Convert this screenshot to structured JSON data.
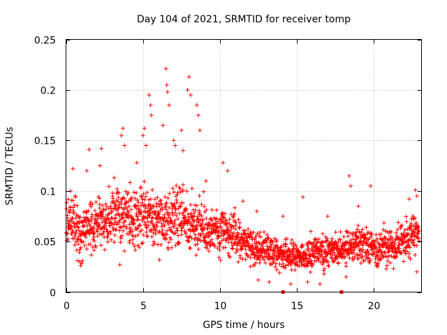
{
  "chart_data": {
    "type": "scatter",
    "title": "Day 104 of 2021, SRMTID for receiver tomp",
    "xlabel": "GPS time / hours",
    "ylabel": "SRMTID / TECUs",
    "xlim": [
      0,
      23.1
    ],
    "ylim": [
      0,
      0.25
    ],
    "x_ticks": [
      0,
      5,
      10,
      15,
      20
    ],
    "x_tick_labels": [
      "0",
      "5",
      "10",
      "15",
      "20"
    ],
    "y_ticks": [
      0,
      0.05,
      0.1,
      0.15,
      0.2,
      0.25
    ],
    "y_tick_labels": [
      "0",
      "0.05",
      "0.1",
      "0.15",
      "0.2",
      "0.25"
    ],
    "grid": true,
    "marker": "+",
    "color": "#ff0000",
    "series": [
      {
        "name": "SRMTID",
        "profile_hours": [
          0,
          0.5,
          1,
          1.5,
          2,
          2.5,
          3,
          3.5,
          4,
          4.5,
          5,
          5.5,
          6,
          6.5,
          7,
          7.5,
          8,
          8.5,
          9,
          9.5,
          10,
          10.5,
          11,
          11.5,
          12,
          12.5,
          13,
          13.5,
          14,
          14.5,
          15,
          15.5,
          16,
          16.5,
          17,
          17.5,
          18,
          18.5,
          19,
          19.5,
          20,
          20.5,
          21,
          21.5,
          22,
          22.5,
          23
        ],
        "profile_median_tecu": [
          0.065,
          0.07,
          0.055,
          0.068,
          0.065,
          0.07,
          0.075,
          0.072,
          0.078,
          0.075,
          0.082,
          0.075,
          0.07,
          0.068,
          0.075,
          0.075,
          0.07,
          0.068,
          0.062,
          0.058,
          0.058,
          0.06,
          0.058,
          0.05,
          0.045,
          0.042,
          0.042,
          0.04,
          0.038,
          0.035,
          0.035,
          0.035,
          0.038,
          0.04,
          0.04,
          0.04,
          0.042,
          0.045,
          0.045,
          0.045,
          0.042,
          0.042,
          0.045,
          0.045,
          0.05,
          0.06,
          0.055
        ],
        "points": [
          [
            0.3,
            0.1
          ],
          [
            0.45,
            0.122
          ],
          [
            0.6,
            0.095
          ],
          [
            1.35,
            0.12
          ],
          [
            1.5,
            0.141
          ],
          [
            2.2,
            0.125
          ],
          [
            2.3,
            0.142
          ],
          [
            3.6,
            0.155
          ],
          [
            3.7,
            0.162
          ],
          [
            3.8,
            0.145
          ],
          [
            4.6,
            0.128
          ],
          [
            5.0,
            0.155
          ],
          [
            5.1,
            0.162
          ],
          [
            5.2,
            0.145
          ],
          [
            5.4,
            0.195
          ],
          [
            5.5,
            0.185
          ],
          [
            5.55,
            0.175
          ],
          [
            6.3,
            0.165
          ],
          [
            6.5,
            0.221
          ],
          [
            6.55,
            0.205
          ],
          [
            6.6,
            0.198
          ],
          [
            6.7,
            0.185
          ],
          [
            7.0,
            0.15
          ],
          [
            7.1,
            0.145
          ],
          [
            7.5,
            0.16
          ],
          [
            7.6,
            0.14
          ],
          [
            7.9,
            0.2
          ],
          [
            8.0,
            0.213
          ],
          [
            8.1,
            0.195
          ],
          [
            8.5,
            0.185
          ],
          [
            8.6,
            0.175
          ],
          [
            8.7,
            0.16
          ],
          [
            9.1,
            0.11
          ],
          [
            10.2,
            0.128
          ],
          [
            10.5,
            0.12
          ],
          [
            11.5,
            0.09
          ],
          [
            12.4,
            0.08
          ],
          [
            14.1,
            0.075
          ],
          [
            15.4,
            0.094
          ],
          [
            15.9,
            0.06
          ],
          [
            17.0,
            0.075
          ],
          [
            18.4,
            0.115
          ],
          [
            18.5,
            0.105
          ],
          [
            19.0,
            0.085
          ],
          [
            19.8,
            0.105
          ],
          [
            22.3,
            0.092
          ],
          [
            22.7,
            0.101
          ],
          [
            22.8,
            0.095
          ],
          [
            0.9,
            0.03
          ],
          [
            3.5,
            0.027
          ],
          [
            12.5,
            0.012
          ],
          [
            13.2,
            0.01
          ],
          [
            14.6,
            0.008
          ],
          [
            15.7,
            0.01
          ],
          [
            16.5,
            0.008
          ],
          [
            18.2,
            0.015
          ],
          [
            22.8,
            0.02
          ]
        ],
        "near_zero_points": [
          [
            14.1,
            0.0
          ],
          [
            17.9,
            0.0
          ]
        ]
      }
    ]
  }
}
